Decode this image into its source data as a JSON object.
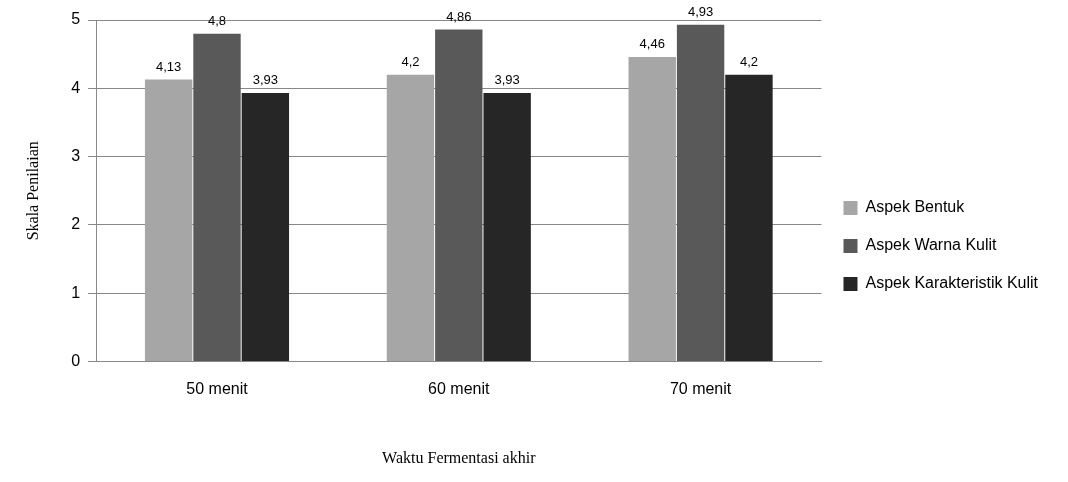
{
  "chart_data": {
    "type": "bar",
    "xlabel": "Waktu Fermentasi akhir",
    "ylabel": "Skala Penilaian",
    "categories": [
      "50 menit",
      "60 menit",
      "70 menit"
    ],
    "series": [
      {
        "name": "Aspek Bentuk",
        "color": "#a6a6a6",
        "values": [
          4.13,
          4.2,
          4.46
        ],
        "value_labels": [
          "4,13",
          "4,2",
          "4,46"
        ]
      },
      {
        "name": "Aspek Warna Kulit",
        "color": "#595959",
        "values": [
          4.8,
          4.86,
          4.93
        ],
        "value_labels": [
          "4,8",
          "4,86",
          "4,93"
        ]
      },
      {
        "name": "Aspek Karakteristik Kulit",
        "color": "#262626",
        "values": [
          3.93,
          3.93,
          4.2
        ],
        "value_labels": [
          "3,93",
          "3,93",
          "4,2"
        ]
      }
    ],
    "ylim": [
      0,
      5
    ],
    "yticks": [
      0,
      1,
      2,
      3,
      4,
      5
    ],
    "grid": "y",
    "legend": "right"
  }
}
